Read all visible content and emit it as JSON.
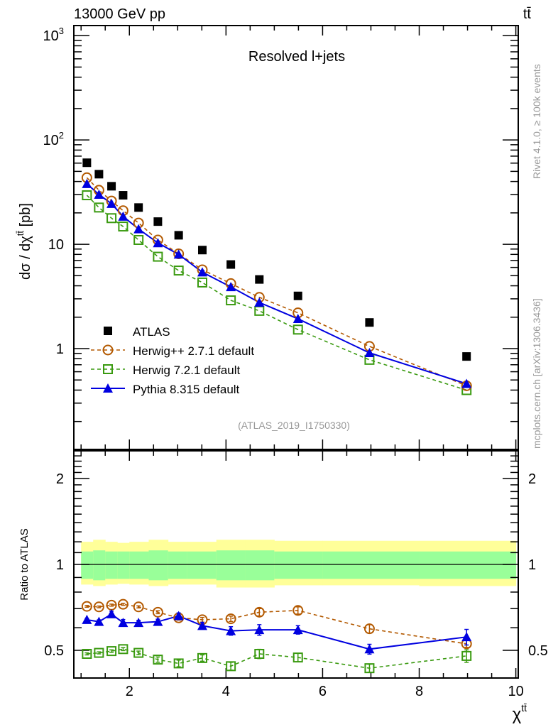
{
  "header": {
    "energy_label": "13000 GeV pp",
    "process_label": "tt̄"
  },
  "side_labels": {
    "rivet": "Rivet 4.1.0, ≥ 100k events",
    "mcplots": "mcplots.cern.ch [arXiv:1306.3436]"
  },
  "colors": {
    "atlas": "#000000",
    "herwigpp": "#b35900",
    "herwig7": "#3a9a10",
    "pythia": "#0000e0",
    "band_outer": "#ffff99",
    "band_inner": "#99ff99"
  },
  "chart_data": [
    {
      "type": "scatter",
      "panel": "main",
      "title": "Resolved l+jets",
      "analysis_id": "(ATLAS_2019_I1750330)",
      "ylabel": "dσ / dχ^{tt̄} [pb]",
      "xlabel": "χ^{tt̄}",
      "yscale": "log",
      "xlim": [
        0.85,
        10.05
      ],
      "ylim": [
        0.108,
        1250
      ],
      "y_ticklabels": [
        {
          "value": 1000,
          "label": "10",
          "sup": "3"
        },
        {
          "value": 100,
          "label": "10",
          "sup": "2"
        },
        {
          "value": 10,
          "label": "10",
          "sup": ""
        },
        {
          "value": 1,
          "label": "1",
          "sup": ""
        }
      ],
      "legend": {
        "placement": "lower-left",
        "entries": [
          {
            "name": "ATLAS",
            "marker": "filled-square",
            "line": "none"
          },
          {
            "name": "Herwig++ 2.7.1 default",
            "marker": "open-circle",
            "line": "dashed"
          },
          {
            "name": "Herwig 7.2.1 default",
            "marker": "open-square",
            "line": "dashed"
          },
          {
            "name": "Pythia 8.315 default",
            "marker": "filled-triangle",
            "line": "solid"
          }
        ]
      },
      "x": [
        1.12,
        1.37,
        1.63,
        1.87,
        2.19,
        2.59,
        3.02,
        3.51,
        4.1,
        4.69,
        5.49,
        6.97,
        8.98
      ],
      "series": [
        {
          "name": "ATLAS",
          "key": "atlas",
          "values": [
            60.5,
            47,
            36,
            29.5,
            22.5,
            16.5,
            12.2,
            8.8,
            6.4,
            4.6,
            3.2,
            1.78,
            0.84
          ]
        },
        {
          "name": "Herwig++ 2.7.1 default",
          "key": "herwigpp",
          "values": [
            43.5,
            33,
            26,
            21,
            16,
            11,
            8.1,
            5.7,
            4.2,
            3.1,
            2.2,
            1.05,
            0.44
          ]
        },
        {
          "name": "Herwig 7.2.1 default",
          "key": "herwig7",
          "values": [
            29.5,
            22.5,
            17.8,
            14.8,
            11,
            7.6,
            5.6,
            4.3,
            2.9,
            2.3,
            1.52,
            0.78,
            0.4
          ]
        },
        {
          "name": "Pythia 8.315 default",
          "key": "pythia",
          "values": [
            38,
            30,
            24.5,
            18.5,
            14,
            10.3,
            8.0,
            5.4,
            3.9,
            2.77,
            1.93,
            0.91,
            0.46
          ]
        }
      ]
    },
    {
      "type": "line",
      "panel": "ratio",
      "ylabel": "Ratio to ATLAS",
      "xlabel": "χ^{tt̄}",
      "yscale": "log",
      "xlim": [
        0.85,
        10.05
      ],
      "ylim": [
        0.4,
        2.5
      ],
      "x_ticklabels": [
        "2",
        "4",
        "6",
        "8",
        "10"
      ],
      "x_ticks": [
        2,
        4,
        6,
        8,
        10
      ],
      "y_ticklabels": [
        "2",
        "1",
        "0.5"
      ],
      "y_ticks": [
        2,
        1,
        0.5
      ],
      "reference_line": 1,
      "band": {
        "bin_edges": [
          1.0,
          1.25,
          1.5,
          1.75,
          2.0,
          2.4,
          2.8,
          3.2,
          3.8,
          4.4,
          5.0,
          6.0,
          8.0,
          10.0
        ],
        "inner": [
          [
            0.89,
            1.11
          ],
          [
            0.88,
            1.12
          ],
          [
            0.89,
            1.11
          ],
          [
            0.89,
            1.11
          ],
          [
            0.89,
            1.11
          ],
          [
            0.88,
            1.12
          ],
          [
            0.89,
            1.11
          ],
          [
            0.89,
            1.11
          ],
          [
            0.88,
            1.12
          ],
          [
            0.88,
            1.12
          ],
          [
            0.89,
            1.11
          ],
          [
            0.89,
            1.11
          ],
          [
            0.89,
            1.11
          ]
        ],
        "outer": [
          [
            0.85,
            1.2
          ],
          [
            0.84,
            1.22
          ],
          [
            0.85,
            1.2
          ],
          [
            0.855,
            1.19
          ],
          [
            0.85,
            1.2
          ],
          [
            0.84,
            1.22
          ],
          [
            0.85,
            1.2
          ],
          [
            0.85,
            1.2
          ],
          [
            0.83,
            1.22
          ],
          [
            0.83,
            1.22
          ],
          [
            0.845,
            1.21
          ],
          [
            0.845,
            1.21
          ],
          [
            0.84,
            1.21
          ]
        ]
      },
      "x": [
        1.12,
        1.37,
        1.63,
        1.87,
        2.19,
        2.59,
        3.02,
        3.51,
        4.1,
        4.69,
        5.49,
        6.97,
        8.98
      ],
      "series": [
        {
          "name": "Herwig++ 2.7.1 default",
          "key": "herwigpp",
          "values": [
            0.713,
            0.71,
            0.72,
            0.725,
            0.71,
            0.68,
            0.65,
            0.64,
            0.645,
            0.68,
            0.69,
            0.595,
            0.527
          ],
          "errors": [
            0.005,
            0.005,
            0.006,
            0.006,
            0.006,
            0.008,
            0.012,
            0.012,
            0.014,
            0.02,
            0.02,
            0.02,
            0.015
          ]
        },
        {
          "name": "Herwig 7.2.1 default",
          "key": "herwig7",
          "values": [
            0.486,
            0.49,
            0.497,
            0.505,
            0.49,
            0.464,
            0.45,
            0.47,
            0.44,
            0.486,
            0.472,
            0.433,
            0.478
          ],
          "errors": [
            0.004,
            0.004,
            0.005,
            0.006,
            0.007,
            0.01,
            0.012,
            0.012,
            0.014,
            0.018,
            0.016,
            0.014,
            0.024
          ]
        },
        {
          "name": "Pythia 8.315 default",
          "key": "pythia",
          "values": [
            0.64,
            0.63,
            0.67,
            0.625,
            0.625,
            0.63,
            0.66,
            0.61,
            0.585,
            0.59,
            0.59,
            0.505,
            0.557
          ],
          "errors": [
            0.006,
            0.009,
            0.016,
            0.016,
            0.012,
            0.013,
            0.016,
            0.016,
            0.02,
            0.025,
            0.02,
            0.02,
            0.035
          ]
        }
      ]
    }
  ]
}
